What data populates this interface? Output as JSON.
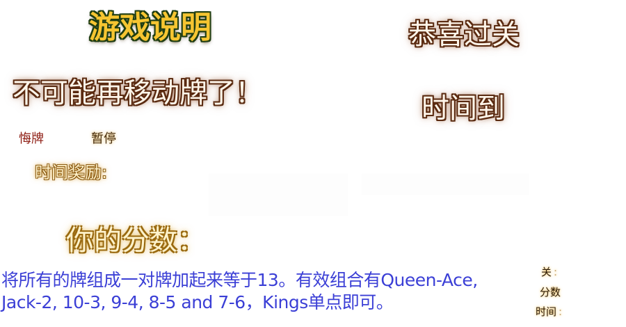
{
  "rules_title": "游戏说明",
  "win_title": "恭喜过关",
  "no_moves_message": "不可能再移动牌了！",
  "time_up_message": "时间到",
  "buttons": {
    "undo": "悔牌",
    "pause": "暂停"
  },
  "time_bonus_label": "时间奖励:",
  "your_score_label": "你的分数：",
  "rules_text": "将所有的牌组成一对牌加起来等于13。有效组合有Queen-Ace, Jack-2, 10-3, 9-4, 8-5 and 7-6，Kings单点即可。",
  "hud": {
    "level_label": "关",
    "score_label": "分数",
    "time_label": "时间",
    "separator": ":"
  }
}
